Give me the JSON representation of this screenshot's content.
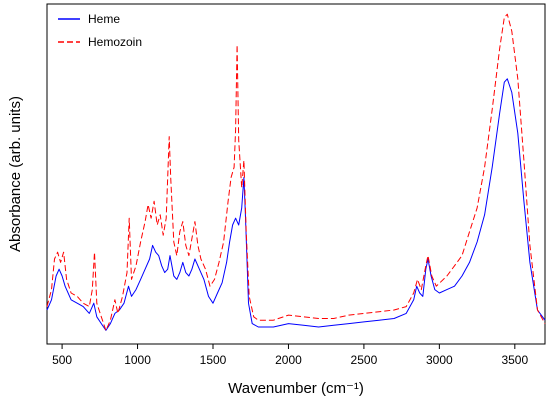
{
  "chart_data": {
    "type": "line",
    "title": "",
    "xlabel": "Wavenumber (cm⁻¹)",
    "ylabel": "Absorbance (arb. units)",
    "xlim": [
      400,
      3700
    ],
    "ylim": [
      0,
      1
    ],
    "xticks": [
      500,
      1000,
      1500,
      2000,
      2500,
      3000,
      3500
    ],
    "yticks_shown": false,
    "grid": false,
    "legend_position": "top-left",
    "series": [
      {
        "name": "Heme",
        "color": "#0000ff",
        "style": "solid",
        "points": [
          [
            400,
            0.1
          ],
          [
            430,
            0.13
          ],
          [
            460,
            0.2
          ],
          [
            480,
            0.22
          ],
          [
            500,
            0.2
          ],
          [
            520,
            0.17
          ],
          [
            560,
            0.13
          ],
          [
            600,
            0.12
          ],
          [
            640,
            0.11
          ],
          [
            680,
            0.09
          ],
          [
            710,
            0.12
          ],
          [
            730,
            0.08
          ],
          [
            760,
            0.06
          ],
          [
            790,
            0.04
          ],
          [
            820,
            0.06
          ],
          [
            850,
            0.09
          ],
          [
            880,
            0.1
          ],
          [
            910,
            0.12
          ],
          [
            940,
            0.17
          ],
          [
            960,
            0.14
          ],
          [
            990,
            0.16
          ],
          [
            1020,
            0.19
          ],
          [
            1050,
            0.22
          ],
          [
            1080,
            0.25
          ],
          [
            1100,
            0.29
          ],
          [
            1120,
            0.27
          ],
          [
            1140,
            0.26
          ],
          [
            1160,
            0.23
          ],
          [
            1180,
            0.21
          ],
          [
            1200,
            0.22
          ],
          [
            1215,
            0.26
          ],
          [
            1240,
            0.2
          ],
          [
            1260,
            0.19
          ],
          [
            1280,
            0.21
          ],
          [
            1300,
            0.24
          ],
          [
            1320,
            0.21
          ],
          [
            1340,
            0.2
          ],
          [
            1360,
            0.22
          ],
          [
            1380,
            0.25
          ],
          [
            1410,
            0.22
          ],
          [
            1440,
            0.19
          ],
          [
            1470,
            0.14
          ],
          [
            1500,
            0.12
          ],
          [
            1530,
            0.15
          ],
          [
            1560,
            0.18
          ],
          [
            1590,
            0.24
          ],
          [
            1610,
            0.3
          ],
          [
            1630,
            0.35
          ],
          [
            1650,
            0.37
          ],
          [
            1670,
            0.35
          ],
          [
            1690,
            0.4
          ],
          [
            1705,
            0.49
          ],
          [
            1715,
            0.38
          ],
          [
            1735,
            0.12
          ],
          [
            1760,
            0.06
          ],
          [
            1800,
            0.05
          ],
          [
            1900,
            0.05
          ],
          [
            2000,
            0.06
          ],
          [
            2100,
            0.055
          ],
          [
            2200,
            0.05
          ],
          [
            2300,
            0.055
          ],
          [
            2400,
            0.06
          ],
          [
            2500,
            0.065
          ],
          [
            2600,
            0.07
          ],
          [
            2700,
            0.075
          ],
          [
            2780,
            0.09
          ],
          [
            2830,
            0.13
          ],
          [
            2850,
            0.17
          ],
          [
            2870,
            0.15
          ],
          [
            2890,
            0.14
          ],
          [
            2910,
            0.22
          ],
          [
            2925,
            0.25
          ],
          [
            2945,
            0.2
          ],
          [
            2970,
            0.16
          ],
          [
            3000,
            0.15
          ],
          [
            3050,
            0.16
          ],
          [
            3100,
            0.17
          ],
          [
            3150,
            0.2
          ],
          [
            3200,
            0.24
          ],
          [
            3250,
            0.3
          ],
          [
            3300,
            0.38
          ],
          [
            3350,
            0.52
          ],
          [
            3400,
            0.68
          ],
          [
            3430,
            0.77
          ],
          [
            3450,
            0.78
          ],
          [
            3480,
            0.74
          ],
          [
            3520,
            0.62
          ],
          [
            3560,
            0.42
          ],
          [
            3600,
            0.24
          ],
          [
            3650,
            0.1
          ],
          [
            3700,
            0.07
          ]
        ]
      },
      {
        "name": "Hemozoin",
        "color": "#ff0000",
        "style": "dashed",
        "points": [
          [
            400,
            0.11
          ],
          [
            430,
            0.16
          ],
          [
            450,
            0.25
          ],
          [
            470,
            0.27
          ],
          [
            490,
            0.24
          ],
          [
            510,
            0.27
          ],
          [
            530,
            0.19
          ],
          [
            560,
            0.15
          ],
          [
            600,
            0.14
          ],
          [
            640,
            0.12
          ],
          [
            680,
            0.11
          ],
          [
            700,
            0.16
          ],
          [
            715,
            0.27
          ],
          [
            730,
            0.12
          ],
          [
            760,
            0.08
          ],
          [
            790,
            0.04
          ],
          [
            820,
            0.07
          ],
          [
            850,
            0.13
          ],
          [
            870,
            0.09
          ],
          [
            900,
            0.14
          ],
          [
            930,
            0.21
          ],
          [
            945,
            0.37
          ],
          [
            960,
            0.19
          ],
          [
            990,
            0.23
          ],
          [
            1020,
            0.3
          ],
          [
            1050,
            0.36
          ],
          [
            1070,
            0.41
          ],
          [
            1090,
            0.37
          ],
          [
            1110,
            0.42
          ],
          [
            1130,
            0.35
          ],
          [
            1150,
            0.38
          ],
          [
            1170,
            0.32
          ],
          [
            1190,
            0.37
          ],
          [
            1210,
            0.61
          ],
          [
            1220,
            0.49
          ],
          [
            1240,
            0.3
          ],
          [
            1260,
            0.26
          ],
          [
            1280,
            0.33
          ],
          [
            1300,
            0.36
          ],
          [
            1320,
            0.29
          ],
          [
            1340,
            0.26
          ],
          [
            1360,
            0.31
          ],
          [
            1380,
            0.36
          ],
          [
            1400,
            0.29
          ],
          [
            1420,
            0.25
          ],
          [
            1450,
            0.22
          ],
          [
            1480,
            0.17
          ],
          [
            1510,
            0.19
          ],
          [
            1540,
            0.24
          ],
          [
            1570,
            0.3
          ],
          [
            1600,
            0.42
          ],
          [
            1620,
            0.49
          ],
          [
            1640,
            0.52
          ],
          [
            1650,
            0.63
          ],
          [
            1660,
            0.88
          ],
          [
            1670,
            0.6
          ],
          [
            1690,
            0.46
          ],
          [
            1705,
            0.54
          ],
          [
            1720,
            0.33
          ],
          [
            1740,
            0.14
          ],
          [
            1770,
            0.08
          ],
          [
            1800,
            0.07
          ],
          [
            1900,
            0.07
          ],
          [
            2000,
            0.085
          ],
          [
            2100,
            0.08
          ],
          [
            2200,
            0.075
          ],
          [
            2300,
            0.075
          ],
          [
            2400,
            0.085
          ],
          [
            2500,
            0.09
          ],
          [
            2600,
            0.095
          ],
          [
            2700,
            0.1
          ],
          [
            2780,
            0.11
          ],
          [
            2830,
            0.15
          ],
          [
            2855,
            0.19
          ],
          [
            2880,
            0.16
          ],
          [
            2910,
            0.23
          ],
          [
            2925,
            0.26
          ],
          [
            2950,
            0.2
          ],
          [
            2980,
            0.17
          ],
          [
            3050,
            0.2
          ],
          [
            3100,
            0.23
          ],
          [
            3150,
            0.26
          ],
          [
            3200,
            0.33
          ],
          [
            3250,
            0.4
          ],
          [
            3300,
            0.52
          ],
          [
            3350,
            0.69
          ],
          [
            3400,
            0.87
          ],
          [
            3430,
            0.96
          ],
          [
            3450,
            0.97
          ],
          [
            3480,
            0.92
          ],
          [
            3520,
            0.78
          ],
          [
            3560,
            0.54
          ],
          [
            3600,
            0.29
          ],
          [
            3650,
            0.1
          ],
          [
            3700,
            0.06
          ]
        ]
      }
    ]
  }
}
